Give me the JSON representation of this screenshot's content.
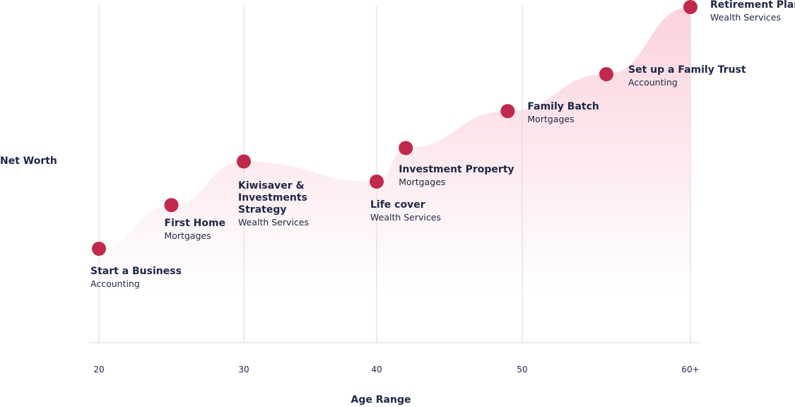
{
  "chart_data": {
    "type": "area",
    "x_label": "Age Range",
    "y_label": "Net Worth",
    "x": [
      20,
      25,
      30,
      40,
      42,
      49,
      55,
      60
    ],
    "values": [
      28,
      41,
      54,
      48,
      58,
      69,
      80,
      100
    ],
    "milestones": [
      {
        "title": "Start a Business",
        "subtitle": "Accounting"
      },
      {
        "title": "First Home",
        "subtitle": "Mortgages"
      },
      {
        "title": "Kiwisaver & Investments Strategy",
        "subtitle": "Wealth Services"
      },
      {
        "title": "Life cover",
        "subtitle": "Wealth Services"
      },
      {
        "title": "Investment Property",
        "subtitle": "Mortgages"
      },
      {
        "title": "Family Batch",
        "subtitle": "Mortgages"
      },
      {
        "title": "Set up a Family Trust",
        "subtitle": "Accounting"
      },
      {
        "title": "Retirement Plans",
        "subtitle": "Wealth Services"
      }
    ],
    "xlim": [
      20,
      60
    ],
    "xticks": [
      20,
      30,
      40,
      50,
      {
        "value": 60,
        "label": "60+"
      }
    ],
    "ylim": [
      0,
      100
    ],
    "grid": true,
    "color": "#c0294b",
    "area_color": "#fbd0da"
  }
}
